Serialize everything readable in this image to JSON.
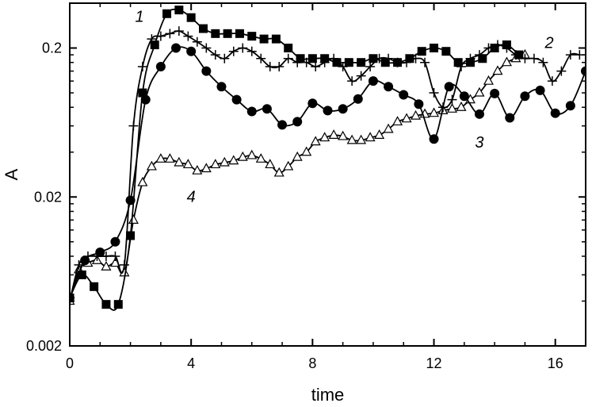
{
  "chart_data": {
    "type": "line",
    "title": "",
    "xlabel": "time",
    "ylabel": "A",
    "xlim": [
      0,
      17
    ],
    "ylim": [
      0.002,
      0.4
    ],
    "yscale": "log",
    "grid": false,
    "x_ticks": [
      0,
      4,
      8,
      12,
      16
    ],
    "x_tick_labels": [
      "0",
      "4",
      "8",
      "12",
      "16"
    ],
    "y_ticks": [
      0.002,
      0.02,
      0.2
    ],
    "y_tick_labels": [
      "0.002",
      "0.02",
      "0.2"
    ],
    "series": [
      {
        "name": "1",
        "marker": "filled-square",
        "x": [
          0.0,
          0.4,
          0.8,
          1.2,
          1.6,
          2.0,
          2.4,
          2.8,
          3.2,
          3.6,
          4.0,
          4.4,
          4.8,
          5.2,
          5.6,
          6.0,
          6.4,
          6.8,
          7.2,
          7.6,
          8.0,
          8.4,
          8.8,
          9.2,
          9.6,
          10.0,
          10.4,
          10.8,
          11.2,
          11.6,
          12.0,
          12.4,
          12.8,
          13.2,
          13.6,
          14.0,
          14.4,
          14.8
        ],
        "y": [
          0.0042,
          0.006,
          0.005,
          0.0038,
          0.0038,
          0.011,
          0.1,
          0.21,
          0.34,
          0.36,
          0.32,
          0.27,
          0.25,
          0.25,
          0.25,
          0.24,
          0.23,
          0.23,
          0.2,
          0.17,
          0.17,
          0.17,
          0.16,
          0.16,
          0.16,
          0.17,
          0.16,
          0.16,
          0.17,
          0.19,
          0.2,
          0.19,
          0.16,
          0.16,
          0.17,
          0.2,
          0.21,
          0.18
        ]
      },
      {
        "name": "2",
        "marker": "plus",
        "x": [
          0.0,
          0.3,
          0.6,
          0.9,
          1.2,
          1.5,
          1.8,
          2.1,
          2.4,
          2.7,
          3.0,
          3.3,
          3.6,
          3.9,
          4.2,
          4.5,
          4.8,
          5.1,
          5.4,
          5.7,
          6.0,
          6.3,
          6.6,
          6.9,
          7.2,
          7.5,
          7.8,
          8.1,
          8.4,
          8.7,
          9.0,
          9.3,
          9.6,
          9.9,
          10.2,
          10.5,
          10.8,
          11.1,
          11.4,
          11.7,
          12.0,
          12.3,
          12.6,
          12.9,
          13.2,
          13.5,
          13.8,
          14.1,
          14.4,
          14.7,
          15.0,
          15.3,
          15.6,
          15.9,
          16.2,
          16.5,
          16.8
        ],
        "y": [
          0.004,
          0.007,
          0.008,
          0.008,
          0.008,
          0.008,
          0.007,
          0.06,
          0.15,
          0.23,
          0.24,
          0.25,
          0.26,
          0.24,
          0.22,
          0.2,
          0.18,
          0.17,
          0.19,
          0.2,
          0.19,
          0.17,
          0.15,
          0.15,
          0.17,
          0.16,
          0.16,
          0.15,
          0.16,
          0.17,
          0.15,
          0.12,
          0.13,
          0.15,
          0.17,
          0.17,
          0.16,
          0.16,
          0.17,
          0.16,
          0.1,
          0.08,
          0.09,
          0.15,
          0.17,
          0.18,
          0.2,
          0.21,
          0.2,
          0.18,
          0.17,
          0.17,
          0.16,
          0.12,
          0.14,
          0.18,
          0.18
        ]
      },
      {
        "name": "3",
        "marker": "filled-circle",
        "x": [
          0.0,
          0.5,
          1.0,
          1.5,
          2.0,
          2.5,
          3.0,
          3.5,
          4.0,
          4.5,
          5.0,
          5.5,
          6.0,
          6.5,
          7.0,
          7.5,
          8.0,
          8.5,
          9.0,
          9.5,
          10.0,
          10.5,
          11.0,
          11.5,
          12.0,
          12.5,
          13.0,
          13.5,
          14.0,
          14.5,
          15.0,
          15.5,
          16.0,
          16.5,
          17.0
        ],
        "y": [
          0.0042,
          0.0075,
          0.0085,
          0.01,
          0.019,
          0.09,
          0.15,
          0.2,
          0.19,
          0.14,
          0.11,
          0.09,
          0.075,
          0.078,
          0.061,
          0.064,
          0.085,
          0.076,
          0.078,
          0.091,
          0.12,
          0.11,
          0.097,
          0.084,
          0.049,
          0.11,
          0.095,
          0.072,
          0.099,
          0.068,
          0.095,
          0.104,
          0.073,
          0.082,
          0.14
        ]
      },
      {
        "name": "4",
        "marker": "open-triangle",
        "x": [
          0.0,
          0.3,
          0.6,
          0.9,
          1.2,
          1.5,
          1.8,
          2.1,
          2.4,
          2.7,
          3.0,
          3.3,
          3.6,
          3.9,
          4.2,
          4.5,
          4.8,
          5.1,
          5.4,
          5.7,
          6.0,
          6.3,
          6.6,
          6.9,
          7.2,
          7.5,
          7.8,
          8.1,
          8.4,
          8.7,
          9.0,
          9.3,
          9.6,
          9.9,
          10.2,
          10.5,
          10.8,
          11.1,
          11.4,
          11.7,
          12.0,
          12.3,
          12.6,
          12.9,
          13.2,
          13.5,
          13.8,
          14.1,
          14.4,
          14.7,
          15.0
        ],
        "y": [
          0.004,
          0.0065,
          0.0072,
          0.0075,
          0.0068,
          0.0072,
          0.0062,
          0.014,
          0.025,
          0.032,
          0.036,
          0.036,
          0.034,
          0.033,
          0.03,
          0.031,
          0.033,
          0.034,
          0.035,
          0.037,
          0.038,
          0.036,
          0.033,
          0.029,
          0.032,
          0.037,
          0.04,
          0.047,
          0.05,
          0.052,
          0.051,
          0.048,
          0.048,
          0.05,
          0.052,
          0.057,
          0.064,
          0.067,
          0.07,
          0.072,
          0.073,
          0.076,
          0.078,
          0.08,
          0.09,
          0.1,
          0.12,
          0.14,
          0.16,
          0.17,
          0.18
        ]
      }
    ],
    "annotations": [
      "1",
      "2",
      "3",
      "4"
    ]
  }
}
